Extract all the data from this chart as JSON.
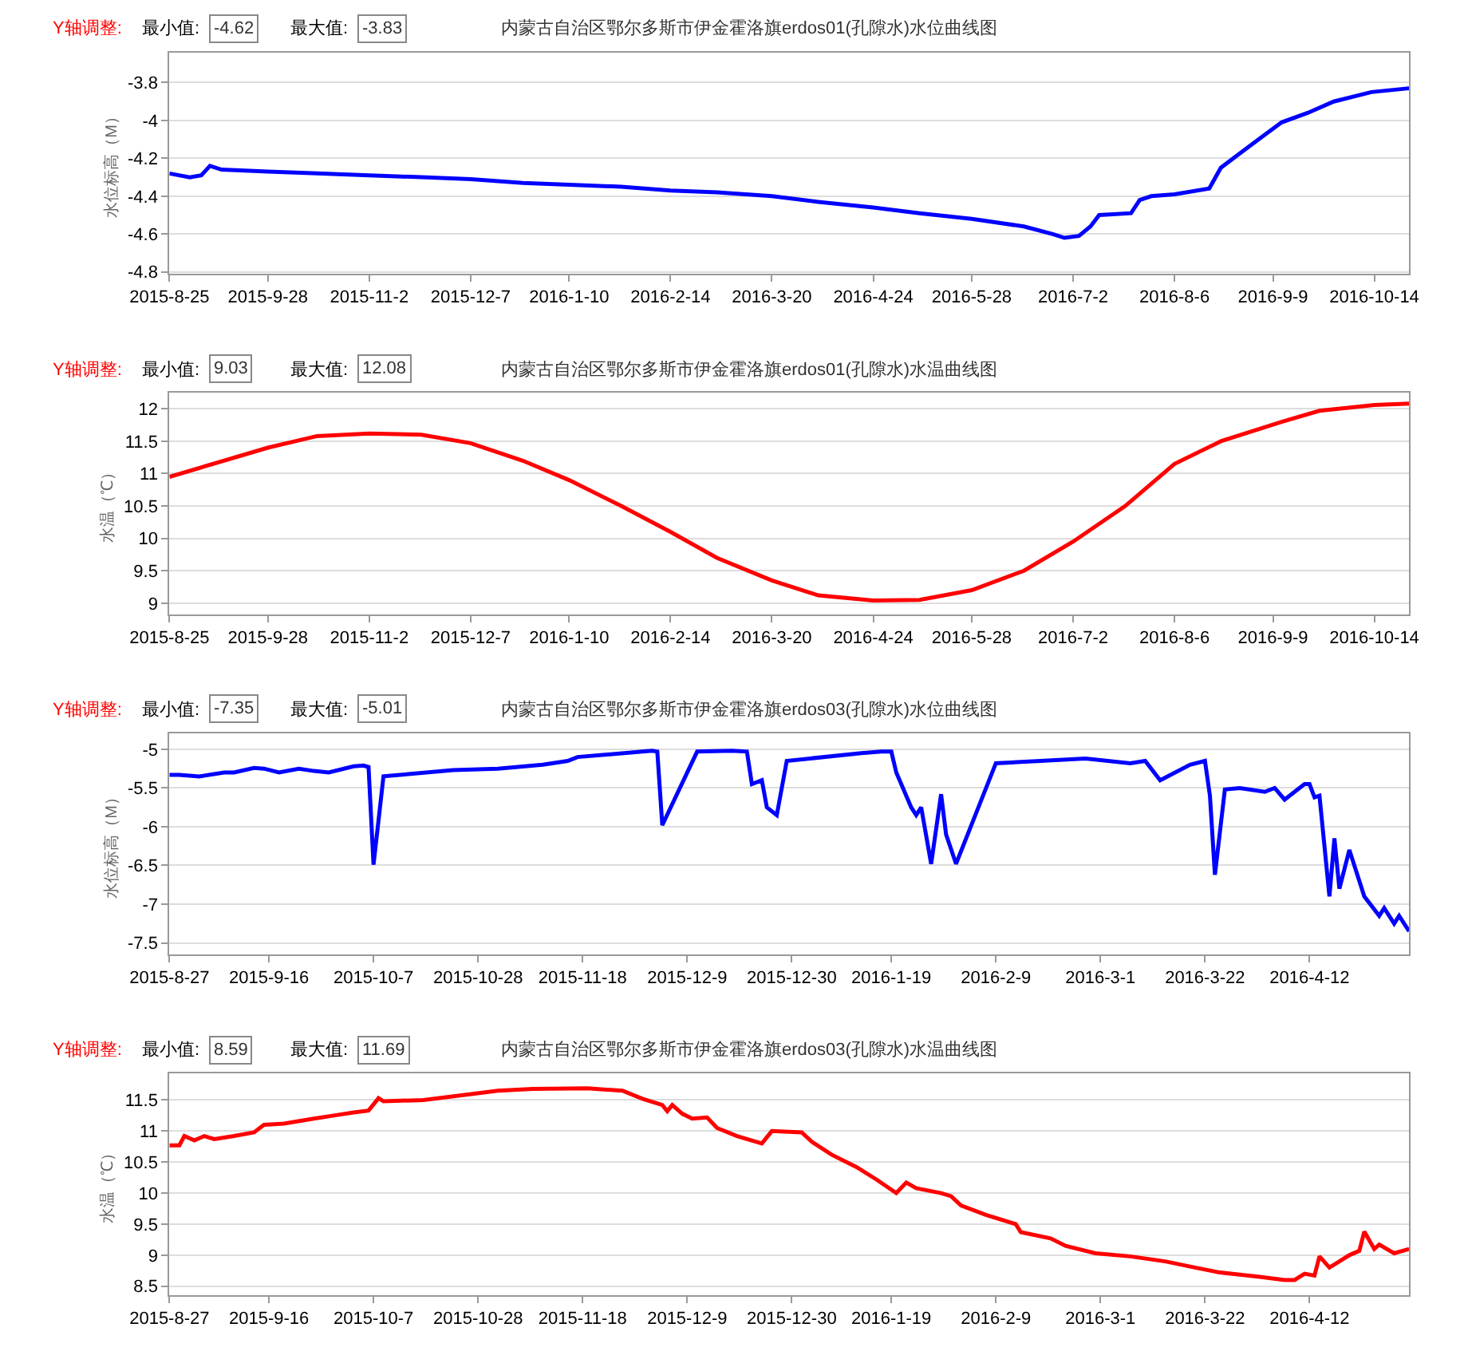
{
  "chart_data": [
    {
      "type": "line",
      "title": "内蒙古自治区鄂尔多斯市伊金霍洛旗erdos01(孔隙水)水位曲线图",
      "ylabel": "水位标高（M）",
      "annotations": [
        "Y轴调整:",
        "最小值:",
        "-4.62",
        "最大值:",
        "-3.83"
      ],
      "grid": "y",
      "x": [
        "2015-08-25",
        "2015-09-01",
        "2015-09-05",
        "2015-09-08",
        "2015-09-12",
        "2015-09-28",
        "2015-10-15",
        "2015-11-02",
        "2015-11-20",
        "2015-12-07",
        "2015-12-25",
        "2016-01-10",
        "2016-01-28",
        "2016-02-14",
        "2016-03-01",
        "2016-03-20",
        "2016-04-05",
        "2016-04-24",
        "2016-05-10",
        "2016-05-28",
        "2016-06-15",
        "2016-06-25",
        "2016-06-29",
        "2016-07-04",
        "2016-07-08",
        "2016-07-11",
        "2016-07-22",
        "2016-07-25",
        "2016-07-29",
        "2016-08-06",
        "2016-08-18",
        "2016-08-22",
        "2016-08-28",
        "2016-09-04",
        "2016-09-12",
        "2016-09-21",
        "2016-09-30",
        "2016-10-13",
        "2016-10-26"
      ],
      "series": [
        {
          "color": "#0000ff",
          "values": [
            -4.28,
            -4.3,
            -4.29,
            -4.24,
            -4.26,
            -4.27,
            -4.28,
            -4.29,
            -4.3,
            -4.31,
            -4.33,
            -4.34,
            -4.35,
            -4.37,
            -4.38,
            -4.4,
            -4.43,
            -4.46,
            -4.49,
            -4.52,
            -4.56,
            -4.6,
            -4.62,
            -4.61,
            -4.56,
            -4.5,
            -4.49,
            -4.42,
            -4.4,
            -4.39,
            -4.36,
            -4.25,
            -4.18,
            -4.1,
            -4.01,
            -3.96,
            -3.9,
            -3.85,
            -3.83
          ]
        }
      ],
      "xlim": [
        "2015-08-25",
        "2016-10-26"
      ],
      "ylim": [
        -4.81,
        -3.64
      ],
      "yticks": [
        -3.8,
        -4,
        -4.2,
        -4.4,
        -4.6,
        -4.8
      ],
      "xticks": [
        {
          "value": "2015-08-25",
          "label": "2015-8-25"
        },
        {
          "value": "2015-09-28",
          "label": "2015-9-28"
        },
        {
          "value": "2015-11-02",
          "label": "2015-11-2"
        },
        {
          "value": "2015-12-07",
          "label": "2015-12-7"
        },
        {
          "value": "2016-01-10",
          "label": "2016-1-10"
        },
        {
          "value": "2016-02-14",
          "label": "2016-2-14"
        },
        {
          "value": "2016-03-20",
          "label": "2016-3-20"
        },
        {
          "value": "2016-04-24",
          "label": "2016-4-24"
        },
        {
          "value": "2016-05-28",
          "label": "2016-5-28"
        },
        {
          "value": "2016-07-02",
          "label": "2016-7-2"
        },
        {
          "value": "2016-08-06",
          "label": "2016-8-6"
        },
        {
          "value": "2016-09-09",
          "label": "2016-9-9"
        },
        {
          "value": "2016-10-14",
          "label": "2016-10-14"
        }
      ]
    },
    {
      "type": "line",
      "title": "内蒙古自治区鄂尔多斯市伊金霍洛旗erdos01(孔隙水)水温曲线图",
      "ylabel": "水温（℃）",
      "annotations": [
        "Y轴调整:",
        "最小值:",
        "9.03",
        "最大值:",
        "12.08"
      ],
      "grid": "y",
      "x": [
        "2015-08-25",
        "2015-09-28",
        "2015-10-15",
        "2015-11-02",
        "2015-11-20",
        "2015-12-07",
        "2015-12-25",
        "2016-01-10",
        "2016-01-28",
        "2016-02-14",
        "2016-03-01",
        "2016-03-20",
        "2016-04-05",
        "2016-04-24",
        "2016-05-10",
        "2016-05-28",
        "2016-06-15",
        "2016-07-02",
        "2016-07-20",
        "2016-08-06",
        "2016-08-22",
        "2016-09-12",
        "2016-09-25",
        "2016-10-14",
        "2016-10-26"
      ],
      "series": [
        {
          "color": "#ff0000",
          "values": [
            10.95,
            11.4,
            11.58,
            11.62,
            11.6,
            11.47,
            11.2,
            10.9,
            10.5,
            10.1,
            9.7,
            9.35,
            9.12,
            9.04,
            9.05,
            9.2,
            9.5,
            9.95,
            10.5,
            11.15,
            11.5,
            11.8,
            11.97,
            12.06,
            12.08
          ]
        }
      ],
      "xlim": [
        "2015-08-25",
        "2016-10-26"
      ],
      "ylim": [
        8.83,
        12.25
      ],
      "yticks": [
        9,
        9.5,
        10,
        10.5,
        11,
        11.5,
        12
      ],
      "xticks": [
        {
          "value": "2015-08-25",
          "label": "2015-8-25"
        },
        {
          "value": "2015-09-28",
          "label": "2015-9-28"
        },
        {
          "value": "2015-11-02",
          "label": "2015-11-2"
        },
        {
          "value": "2015-12-07",
          "label": "2015-12-7"
        },
        {
          "value": "2016-01-10",
          "label": "2016-1-10"
        },
        {
          "value": "2016-02-14",
          "label": "2016-2-14"
        },
        {
          "value": "2016-03-20",
          "label": "2016-3-20"
        },
        {
          "value": "2016-04-24",
          "label": "2016-4-24"
        },
        {
          "value": "2016-05-28",
          "label": "2016-5-28"
        },
        {
          "value": "2016-07-02",
          "label": "2016-7-2"
        },
        {
          "value": "2016-08-06",
          "label": "2016-8-6"
        },
        {
          "value": "2016-09-09",
          "label": "2016-9-9"
        },
        {
          "value": "2016-10-14",
          "label": "2016-10-14"
        }
      ]
    },
    {
      "type": "line",
      "title": "内蒙古自治区鄂尔多斯市伊金霍洛旗erdos03(孔隙水)水位曲线图",
      "ylabel": "水位标高（M）",
      "annotations": [
        "Y轴调整:",
        "最小值:",
        "-7.35",
        "最大值:",
        "-5.01"
      ],
      "grid": "y",
      "x": [
        "2015-08-27",
        "2015-08-29",
        "2015-09-02",
        "2015-09-07",
        "2015-09-09",
        "2015-09-13",
        "2015-09-15",
        "2015-09-18",
        "2015-09-22",
        "2015-09-25",
        "2015-09-28",
        "2015-10-03",
        "2015-10-05",
        "2015-10-06",
        "2015-10-07",
        "2015-10-09",
        "2015-10-14",
        "2015-10-23",
        "2015-11-01",
        "2015-11-10",
        "2015-11-15",
        "2015-11-17",
        "2015-11-30",
        "2015-12-02",
        "2015-12-03",
        "2015-12-04",
        "2015-12-11",
        "2015-12-18",
        "2015-12-21",
        "2015-12-22",
        "2015-12-24",
        "2015-12-25",
        "2015-12-27",
        "2015-12-29",
        "2016-01-13",
        "2016-01-17",
        "2016-01-19",
        "2016-01-20",
        "2016-01-23",
        "2016-01-24",
        "2016-01-25",
        "2016-01-27",
        "2016-01-29",
        "2016-01-30",
        "2016-02-01",
        "2016-02-09",
        "2016-02-18",
        "2016-02-27",
        "2016-03-07",
        "2016-03-10",
        "2016-03-13",
        "2016-03-19",
        "2016-03-22",
        "2016-03-23",
        "2016-03-24",
        "2016-03-26",
        "2016-03-29",
        "2016-04-03",
        "2016-04-05",
        "2016-04-07",
        "2016-04-09",
        "2016-04-11",
        "2016-04-12",
        "2016-04-13",
        "2016-04-14",
        "2016-04-16",
        "2016-04-17",
        "2016-04-18",
        "2016-04-20",
        "2016-04-23",
        "2016-04-26",
        "2016-04-27",
        "2016-04-29",
        "2016-04-30",
        "2016-05-02"
      ],
      "series": [
        {
          "color": "#0000ff",
          "values": [
            -5.33,
            -5.33,
            -5.35,
            -5.3,
            -5.3,
            -5.24,
            -5.25,
            -5.3,
            -5.25,
            -5.28,
            -5.3,
            -5.22,
            -5.21,
            -5.23,
            -6.49,
            -5.35,
            -5.32,
            -5.27,
            -5.25,
            -5.2,
            -5.15,
            -5.1,
            -5.03,
            -5.02,
            -5.03,
            -5.98,
            -5.03,
            -5.02,
            -5.03,
            -5.45,
            -5.4,
            -5.75,
            -5.85,
            -5.15,
            -5.05,
            -5.03,
            -5.03,
            -5.3,
            -5.75,
            -5.85,
            -5.75,
            -6.48,
            -5.58,
            -6.1,
            -6.48,
            -5.18,
            -5.15,
            -5.12,
            -5.18,
            -5.15,
            -5.4,
            -5.2,
            -5.15,
            -5.6,
            -6.62,
            -5.52,
            -5.5,
            -5.55,
            -5.5,
            -5.65,
            -5.55,
            -5.45,
            -5.45,
            -5.62,
            -5.6,
            -6.9,
            -6.15,
            -6.8,
            -6.3,
            -6.9,
            -7.15,
            -7.05,
            -7.25,
            -7.15,
            -7.35
          ]
        }
      ],
      "xlim": [
        "2015-08-27",
        "2016-05-02"
      ],
      "ylim": [
        -7.65,
        -4.79
      ],
      "yticks": [
        -5,
        -5.5,
        -6,
        -6.5,
        -7,
        -7.5
      ],
      "xticks": [
        {
          "value": "2015-08-27",
          "label": "2015-8-27"
        },
        {
          "value": "2015-09-16",
          "label": "2015-9-16"
        },
        {
          "value": "2015-10-07",
          "label": "2015-10-7"
        },
        {
          "value": "2015-10-28",
          "label": "2015-10-28"
        },
        {
          "value": "2015-11-18",
          "label": "2015-11-18"
        },
        {
          "value": "2015-12-09",
          "label": "2015-12-9"
        },
        {
          "value": "2015-12-30",
          "label": "2015-12-30"
        },
        {
          "value": "2016-01-19",
          "label": "2016-1-19"
        },
        {
          "value": "2016-02-09",
          "label": "2016-2-9"
        },
        {
          "value": "2016-03-01",
          "label": "2016-3-1"
        },
        {
          "value": "2016-03-22",
          "label": "2016-3-22"
        },
        {
          "value": "2016-04-12",
          "label": "2016-4-12"
        }
      ]
    },
    {
      "type": "line",
      "title": "内蒙古自治区鄂尔多斯市伊金霍洛旗erdos03(孔隙水)水温曲线图",
      "ylabel": "水温（℃）",
      "annotations": [
        "Y轴调整:",
        "最小值:",
        "8.59",
        "最大值:",
        "11.69"
      ],
      "grid": "y",
      "x": [
        "2015-08-27",
        "2015-08-29",
        "2015-08-30",
        "2015-09-01",
        "2015-09-03",
        "2015-09-05",
        "2015-09-09",
        "2015-09-13",
        "2015-09-15",
        "2015-09-19",
        "2015-09-25",
        "2015-09-29",
        "2015-10-03",
        "2015-10-06",
        "2015-10-08",
        "2015-10-09",
        "2015-10-17",
        "2015-10-25",
        "2015-11-01",
        "2015-11-08",
        "2015-11-19",
        "2015-11-26",
        "2015-11-30",
        "2015-12-04",
        "2015-12-05",
        "2015-12-06",
        "2015-12-08",
        "2015-12-10",
        "2015-12-13",
        "2015-12-15",
        "2015-12-19",
        "2015-12-24",
        "2015-12-26",
        "2016-01-01",
        "2016-01-03",
        "2016-01-07",
        "2016-01-12",
        "2016-01-16",
        "2016-01-20",
        "2016-01-22",
        "2016-01-24",
        "2016-01-29",
        "2016-01-31",
        "2016-02-02",
        "2016-02-07",
        "2016-02-13",
        "2016-02-14",
        "2016-02-20",
        "2016-02-23",
        "2016-02-29",
        "2016-03-07",
        "2016-03-14",
        "2016-03-20",
        "2016-03-25",
        "2016-04-02",
        "2016-04-07",
        "2016-04-09",
        "2016-04-11",
        "2016-04-13",
        "2016-04-14",
        "2016-04-16",
        "2016-04-18",
        "2016-04-20",
        "2016-04-22",
        "2016-04-23",
        "2016-04-25",
        "2016-04-26",
        "2016-04-29",
        "2016-05-02"
      ],
      "series": [
        {
          "color": "#ff0000",
          "values": [
            10.77,
            10.77,
            10.92,
            10.85,
            10.92,
            10.87,
            10.92,
            10.98,
            11.1,
            11.12,
            11.2,
            11.25,
            11.3,
            11.33,
            11.53,
            11.48,
            11.5,
            11.58,
            11.65,
            11.68,
            11.69,
            11.65,
            11.52,
            11.42,
            11.32,
            11.42,
            11.28,
            11.2,
            11.22,
            11.05,
            10.92,
            10.8,
            11.0,
            10.98,
            10.83,
            10.62,
            10.42,
            10.22,
            10.0,
            10.17,
            10.08,
            10.0,
            9.95,
            9.8,
            9.65,
            9.5,
            9.37,
            9.27,
            9.15,
            9.03,
            8.98,
            8.9,
            8.8,
            8.72,
            8.65,
            8.6,
            8.6,
            8.7,
            8.67,
            8.98,
            8.8,
            8.9,
            9.0,
            9.07,
            9.38,
            9.1,
            9.17,
            9.03,
            9.1
          ]
        }
      ],
      "xlim": [
        "2015-08-27",
        "2016-05-02"
      ],
      "ylim": [
        8.36,
        11.93
      ],
      "yticks": [
        8.5,
        9,
        9.5,
        10,
        10.5,
        11,
        11.5
      ],
      "xticks": [
        {
          "value": "2015-08-27",
          "label": "2015-8-27"
        },
        {
          "value": "2015-09-16",
          "label": "2015-9-16"
        },
        {
          "value": "2015-10-07",
          "label": "2015-10-7"
        },
        {
          "value": "2015-10-28",
          "label": "2015-10-28"
        },
        {
          "value": "2015-11-18",
          "label": "2015-11-18"
        },
        {
          "value": "2015-12-09",
          "label": "2015-12-9"
        },
        {
          "value": "2015-12-30",
          "label": "2015-12-30"
        },
        {
          "value": "2016-01-19",
          "label": "2016-1-19"
        },
        {
          "value": "2016-02-09",
          "label": "2016-2-9"
        },
        {
          "value": "2016-03-01",
          "label": "2016-3-1"
        },
        {
          "value": "2016-03-22",
          "label": "2016-3-22"
        },
        {
          "value": "2016-04-12",
          "label": "2016-4-12"
        }
      ]
    }
  ]
}
